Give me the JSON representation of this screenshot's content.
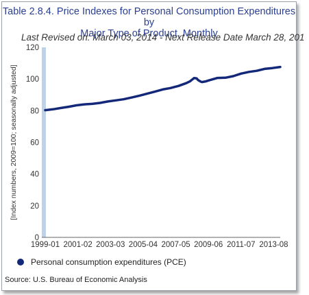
{
  "chart_data": {
    "type": "line",
    "title_line1": "Table 2.8.4. Price Indexes for Personal Consumption Expenditures by",
    "title_line2": "Major Type of Product, Monthly",
    "subtitle": "Last Revised on: March 03, 2014 - Next Release Date March 28, 201",
    "ylabel": "[Index numbers, 2009=100; seasonally adjusted]",
    "xlabel": "",
    "ylim": [
      0,
      120
    ],
    "y_ticks": [
      "0",
      "20",
      "40",
      "60",
      "80",
      "100",
      "120"
    ],
    "x_ticks": [
      "1999-01",
      "2001-02",
      "2003-03",
      "2005-04",
      "2007-05",
      "2009-06",
      "2011-07",
      "2013-08"
    ],
    "grid": false,
    "legend_position": "bottom-left",
    "series": [
      {
        "name": "Personal consumption expenditures (PCE)",
        "color": "#14287a",
        "points": [
          [
            "1999-01",
            80.3
          ],
          [
            "1999-07",
            80.9
          ],
          [
            "2000-01",
            81.7
          ],
          [
            "2000-07",
            82.5
          ],
          [
            "2001-01",
            83.4
          ],
          [
            "2001-07",
            84.0
          ],
          [
            "2002-01",
            84.3
          ],
          [
            "2002-07",
            84.9
          ],
          [
            "2003-01",
            85.8
          ],
          [
            "2003-07",
            86.5
          ],
          [
            "2004-01",
            87.2
          ],
          [
            "2004-07",
            88.3
          ],
          [
            "2005-01",
            89.4
          ],
          [
            "2005-07",
            90.7
          ],
          [
            "2006-01",
            92.0
          ],
          [
            "2006-07",
            93.4
          ],
          [
            "2007-01",
            94.3
          ],
          [
            "2007-07",
            95.6
          ],
          [
            "2008-01",
            97.4
          ],
          [
            "2008-04",
            98.6
          ],
          [
            "2008-07",
            100.6
          ],
          [
            "2008-09",
            100.4
          ],
          [
            "2008-10",
            99.4
          ],
          [
            "2008-12",
            98.4
          ],
          [
            "2009-01",
            98.1
          ],
          [
            "2009-04",
            98.5
          ],
          [
            "2009-07",
            99.3
          ],
          [
            "2010-01",
            100.7
          ],
          [
            "2010-07",
            100.8
          ],
          [
            "2011-01",
            101.8
          ],
          [
            "2011-07",
            103.4
          ],
          [
            "2012-01",
            104.5
          ],
          [
            "2012-07",
            105.2
          ],
          [
            "2013-01",
            106.4
          ],
          [
            "2013-07",
            106.9
          ],
          [
            "2014-01",
            107.6
          ]
        ]
      }
    ]
  },
  "source": "Source: U.S. Bureau of Economic Analysis"
}
